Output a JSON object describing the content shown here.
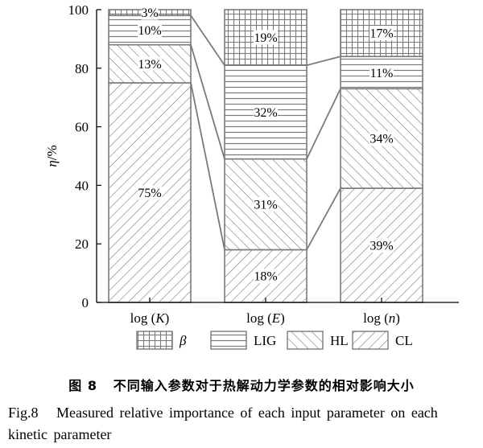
{
  "chart_data": {
    "type": "bar",
    "stacked": true,
    "categories": [
      "log (K)",
      "log (E)",
      "log (n)"
    ],
    "ylabel": "η/%",
    "ylim": [
      0,
      100
    ],
    "yticks": [
      0,
      20,
      40,
      60,
      80,
      100
    ],
    "grid": false,
    "legend_position": "bottom",
    "series": [
      {
        "name": "CL",
        "values": [
          75,
          18,
          39
        ],
        "labels": [
          "75%",
          "18%",
          "39%"
        ],
        "pattern": "diagonal-down"
      },
      {
        "name": "HL",
        "values": [
          13,
          31,
          34
        ],
        "labels": [
          "13%",
          "31%",
          "34%"
        ],
        "pattern": "diagonal-up"
      },
      {
        "name": "LIG",
        "values": [
          10,
          32,
          11
        ],
        "labels": [
          "10%",
          "32%",
          "11%"
        ],
        "pattern": "horizontal"
      },
      {
        "name": "β",
        "values": [
          3,
          19,
          17
        ],
        "labels": [
          "3%",
          "19%",
          "17%"
        ],
        "pattern": "grid"
      }
    ]
  },
  "caption": {
    "cn_number": "图 8",
    "cn_text": "不同输入参数对于热解动力学参数的相对影响大小",
    "en_number": "Fig.8",
    "en_text": "Measured relative importance of each input parameter on each kinetic parameter"
  },
  "colors": {
    "stroke": "#7a7a7a",
    "axis": "#000000"
  }
}
